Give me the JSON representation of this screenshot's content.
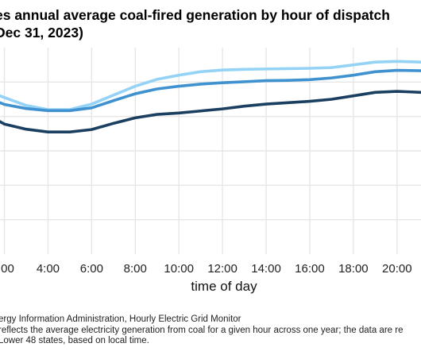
{
  "title_lines": [
    "es annual average coal-fired generation by hour of dispatch",
    "Dec 31, 2023)"
  ],
  "footer_lines": [
    "ergy Information Administration, Hourly Electric Grid Monitor",
    "reflects the average electricity generation from coal for a given hour across one year; the data are re",
    "Lower 48 states, based on local time."
  ],
  "colors": {
    "series_light": "#94d3f5",
    "series_mid": "#3f92cf",
    "series_dark": "#1a3f60",
    "grid": "#e6e6e6"
  },
  "chart_data": {
    "type": "line",
    "xlabel": "time of day",
    "ylabel": "",
    "x_unit": "hour",
    "x_ticks": [
      {
        "value": 2,
        "label": ":00"
      },
      {
        "value": 4,
        "label": "4:00"
      },
      {
        "value": 6,
        "label": "6:00"
      },
      {
        "value": 8,
        "label": "8:00"
      },
      {
        "value": 10,
        "label": "10:00"
      },
      {
        "value": 12,
        "label": "12:00"
      },
      {
        "value": 14,
        "label": "14:00"
      },
      {
        "value": 16,
        "label": "16:00"
      },
      {
        "value": 18,
        "label": "18:00"
      },
      {
        "value": 20,
        "label": "20:00"
      }
    ],
    "xlim": [
      1.8,
      21.1
    ],
    "ylim": [
      0,
      6
    ],
    "y_gridlines": [
      1,
      2,
      3,
      4,
      5
    ],
    "grid": true,
    "legend": "none",
    "x": [
      1.8,
      2,
      3,
      4,
      5,
      6,
      7,
      8,
      9,
      10,
      11,
      12,
      13,
      14,
      15,
      16,
      17,
      18,
      19,
      20,
      21.1
    ],
    "series": [
      {
        "color": "#94d3f5",
        "values": [
          4.6,
          4.55,
          4.32,
          4.2,
          4.2,
          4.36,
          4.62,
          4.88,
          5.08,
          5.2,
          5.3,
          5.35,
          5.37,
          5.38,
          5.39,
          5.4,
          5.42,
          5.5,
          5.58,
          5.6,
          5.58
        ]
      },
      {
        "color": "#3f92cf",
        "values": [
          4.4,
          4.35,
          4.23,
          4.17,
          4.17,
          4.25,
          4.46,
          4.66,
          4.8,
          4.88,
          4.94,
          4.98,
          5.01,
          5.04,
          5.05,
          5.07,
          5.12,
          5.2,
          5.3,
          5.34,
          5.33
        ]
      },
      {
        "color": "#1a3f60",
        "values": [
          3.85,
          3.78,
          3.63,
          3.55,
          3.55,
          3.62,
          3.8,
          3.96,
          4.06,
          4.1,
          4.16,
          4.22,
          4.3,
          4.36,
          4.4,
          4.44,
          4.5,
          4.6,
          4.7,
          4.73,
          4.7
        ]
      }
    ]
  }
}
